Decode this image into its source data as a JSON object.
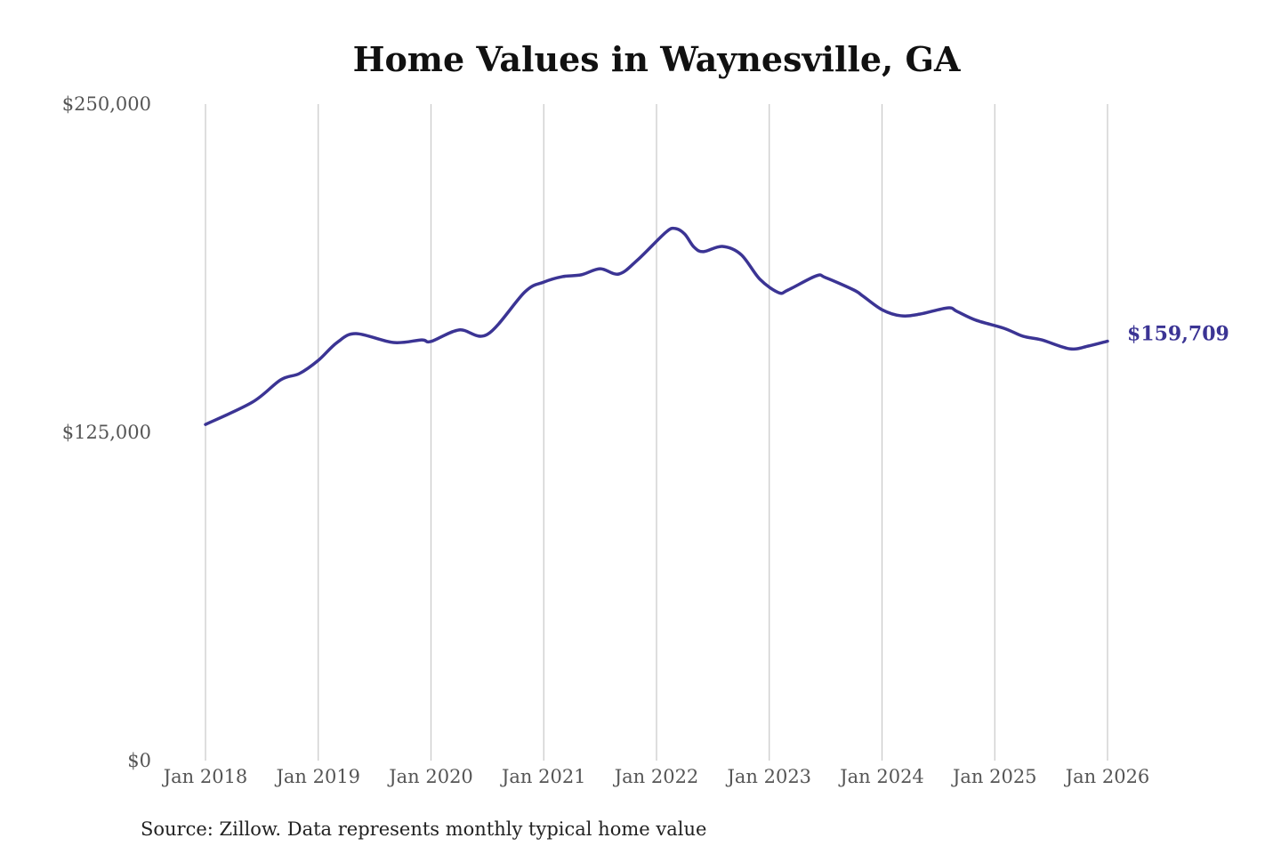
{
  "chart_data": {
    "type": "line",
    "title": "Home Values in Waynesville, GA",
    "source": "Source: Zillow. Data represents monthly typical home value",
    "ylim": [
      0,
      250000
    ],
    "y_ticks": [
      0,
      125000,
      250000
    ],
    "y_tick_labels": [
      "$0",
      "$125,000",
      "$250,000"
    ],
    "x_tick_labels": [
      "Jan 2018",
      "Jan 2019",
      "Jan 2020",
      "Jan 2021",
      "Jan 2022",
      "Jan 2023",
      "Jan 2024",
      "Jan 2025",
      "Jan 2026"
    ],
    "grid": "vertical",
    "line_color": "#3b3494",
    "end_label": "$159,709",
    "series": [
      {
        "points": [
          [
            "2018-01",
            128000
          ],
          [
            "2018-06",
            136500
          ],
          [
            "2018-09",
            145000
          ],
          [
            "2018-11",
            147400
          ],
          [
            "2019-01",
            152400
          ],
          [
            "2019-03",
            159200
          ],
          [
            "2019-05",
            162600
          ],
          [
            "2019-09",
            159200
          ],
          [
            "2019-12",
            160200
          ],
          [
            "2020-01",
            159600
          ],
          [
            "2020-04",
            164000
          ],
          [
            "2020-07",
            162300
          ],
          [
            "2020-11",
            178500
          ],
          [
            "2021-01",
            182200
          ],
          [
            "2021-03",
            184300
          ],
          [
            "2021-05",
            185000
          ],
          [
            "2021-07",
            187300
          ],
          [
            "2021-09",
            185300
          ],
          [
            "2021-11",
            190700
          ],
          [
            "2022-02",
            201200
          ],
          [
            "2022-03",
            202600
          ],
          [
            "2022-04",
            200500
          ],
          [
            "2022-05",
            195500
          ],
          [
            "2022-06",
            193800
          ],
          [
            "2022-08",
            195800
          ],
          [
            "2022-10",
            192700
          ],
          [
            "2022-12",
            183300
          ],
          [
            "2023-02",
            178200
          ],
          [
            "2023-03",
            179200
          ],
          [
            "2023-06",
            184600
          ],
          [
            "2023-07",
            183900
          ],
          [
            "2023-10",
            179200
          ],
          [
            "2023-11",
            176800
          ],
          [
            "2024-01",
            171700
          ],
          [
            "2024-03",
            169400
          ],
          [
            "2024-05",
            170000
          ],
          [
            "2024-08",
            172400
          ],
          [
            "2024-09",
            171000
          ],
          [
            "2024-11",
            167700
          ],
          [
            "2025-02",
            164600
          ],
          [
            "2025-04",
            161600
          ],
          [
            "2025-06",
            160200
          ],
          [
            "2025-09",
            156800
          ],
          [
            "2025-11",
            157900
          ],
          [
            "2026-01",
            159709
          ]
        ]
      }
    ]
  }
}
